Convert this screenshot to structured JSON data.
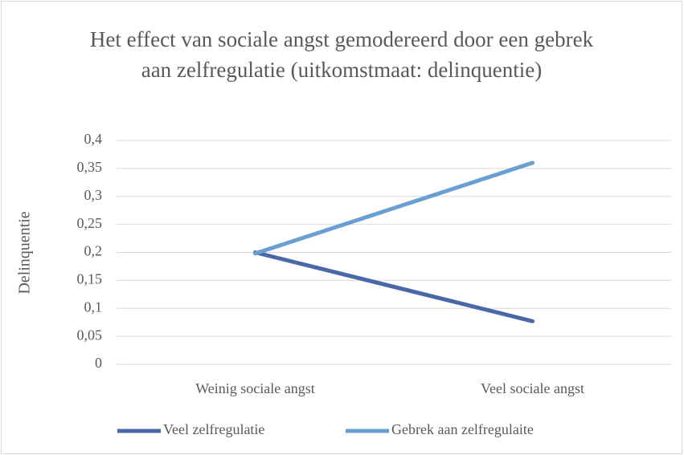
{
  "chart_data": {
    "type": "line",
    "title": "Het effect van sociale angst gemodereerd door een gebrek aan zelfregulatie (uitkomstmaat: delinquentie)",
    "ylabel": "Delinquentie",
    "categories": [
      "Weinig sociale angst",
      "Veel sociale angst"
    ],
    "series": [
      {
        "name": "Veel zelfregulatie",
        "color": "#4a67a8",
        "values": [
          0.2,
          0.077
        ]
      },
      {
        "name": "Gebrek aan zelfregulaite",
        "color": "#6a9fd2",
        "values": [
          0.198,
          0.36
        ]
      }
    ],
    "ylim": [
      0,
      0.4
    ],
    "yticks": [
      0,
      {
        "value": 0.05,
        "label": "0,05"
      },
      {
        "value": 0.1,
        "label": "0,1"
      },
      {
        "value": 0.15,
        "label": "0,15"
      },
      {
        "value": 0.2,
        "label": "0,2"
      },
      {
        "value": 0.25,
        "label": "0,25"
      },
      {
        "value": 0.3,
        "label": "0,3"
      },
      {
        "value": 0.35,
        "label": "0,35"
      },
      {
        "value": 0.4,
        "label": "0,4"
      }
    ],
    "grid": true,
    "legend": "bottom"
  }
}
